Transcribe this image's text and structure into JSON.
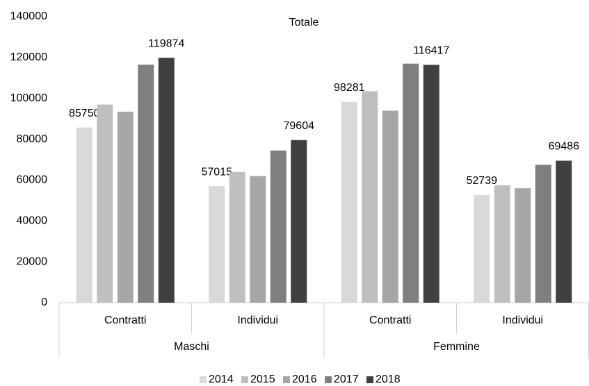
{
  "chart_data": {
    "type": "bar",
    "title": "Totale",
    "categories": [
      "Contratti",
      "Individui",
      "Contratti",
      "Individui"
    ],
    "groups": [
      "Maschi",
      "Femmine"
    ],
    "series": [
      {
        "name": "2014",
        "color": "#d9d9d9",
        "values": [
          85750,
          57015,
          98281,
          52739
        ],
        "data_labels": true
      },
      {
        "name": "2015",
        "color": "#bfbfbf",
        "values": [
          97000,
          64000,
          103500,
          57500
        ]
      },
      {
        "name": "2016",
        "color": "#a6a6a6",
        "values": [
          93500,
          62000,
          94000,
          56000
        ]
      },
      {
        "name": "2017",
        "color": "#7f7f7f",
        "values": [
          116500,
          74500,
          117000,
          67500
        ]
      },
      {
        "name": "2018",
        "color": "#404040",
        "values": [
          119874,
          79604,
          116417,
          69486
        ],
        "data_labels": true
      }
    ],
    "ylim": [
      0,
      140000
    ],
    "yticks": [
      0,
      20000,
      40000,
      60000,
      80000,
      100000,
      120000,
      140000
    ],
    "grid": false,
    "legend": "bottom"
  }
}
